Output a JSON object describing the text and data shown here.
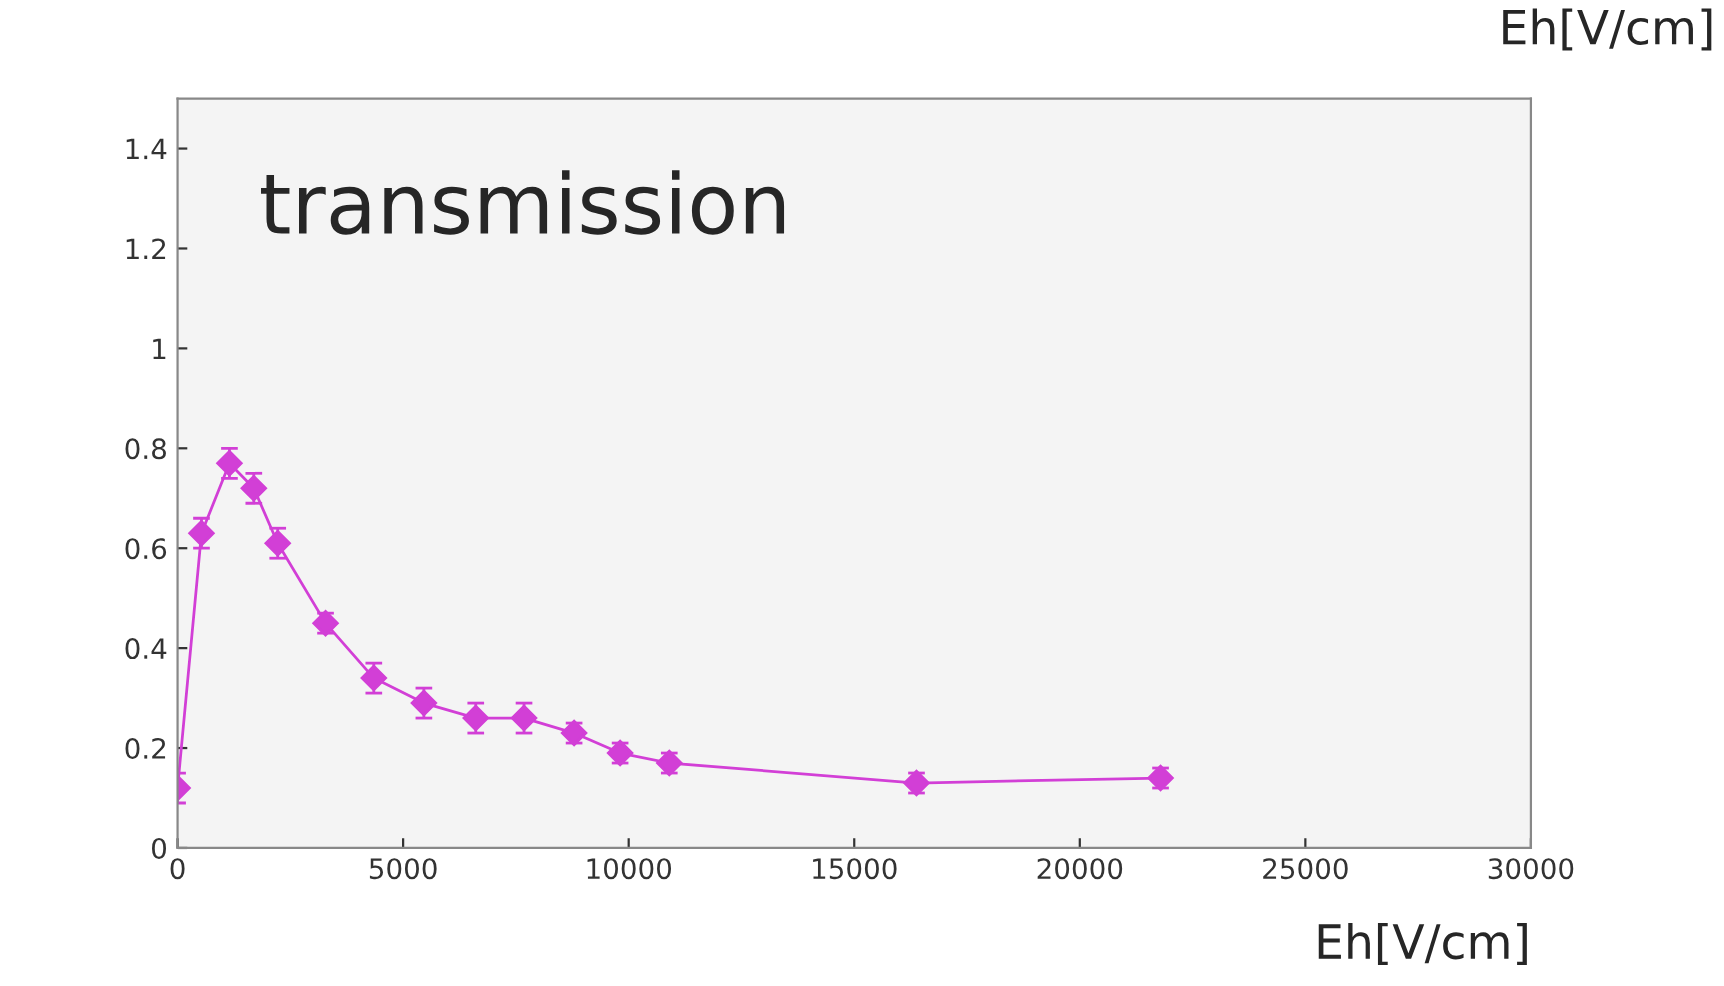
{
  "chart_data": {
    "type": "line",
    "xlabel": "Eh[V/cm]",
    "annotations": [
      "transmission",
      "Eh[V/cm]"
    ],
    "x": [
      0,
      530,
      1150,
      1690,
      2220,
      3280,
      4350,
      5460,
      6610,
      7680,
      8790,
      9810,
      10900,
      16380,
      21790
    ],
    "series": [
      {
        "color": "#d23fd6",
        "values": [
          0.12,
          0.63,
          0.77,
          0.72,
          0.61,
          0.45,
          0.34,
          0.29,
          0.26,
          0.26,
          0.23,
          0.19,
          0.17,
          0.13,
          0.14
        ],
        "errors": [
          0.03,
          0.03,
          0.03,
          0.03,
          0.03,
          0.02,
          0.03,
          0.03,
          0.03,
          0.03,
          0.02,
          0.02,
          0.02,
          0.02,
          0.02
        ]
      }
    ],
    "marker": "diamond",
    "xlim": [
      0,
      30000
    ],
    "xticks": [
      0,
      5000,
      10000,
      15000,
      20000,
      25000,
      30000
    ],
    "ylim": [
      0,
      1.5
    ],
    "yticks": [
      0,
      0.2,
      0.4,
      0.6,
      0.8,
      1,
      1.2,
      1.4
    ],
    "grid": false,
    "legend": false
  }
}
